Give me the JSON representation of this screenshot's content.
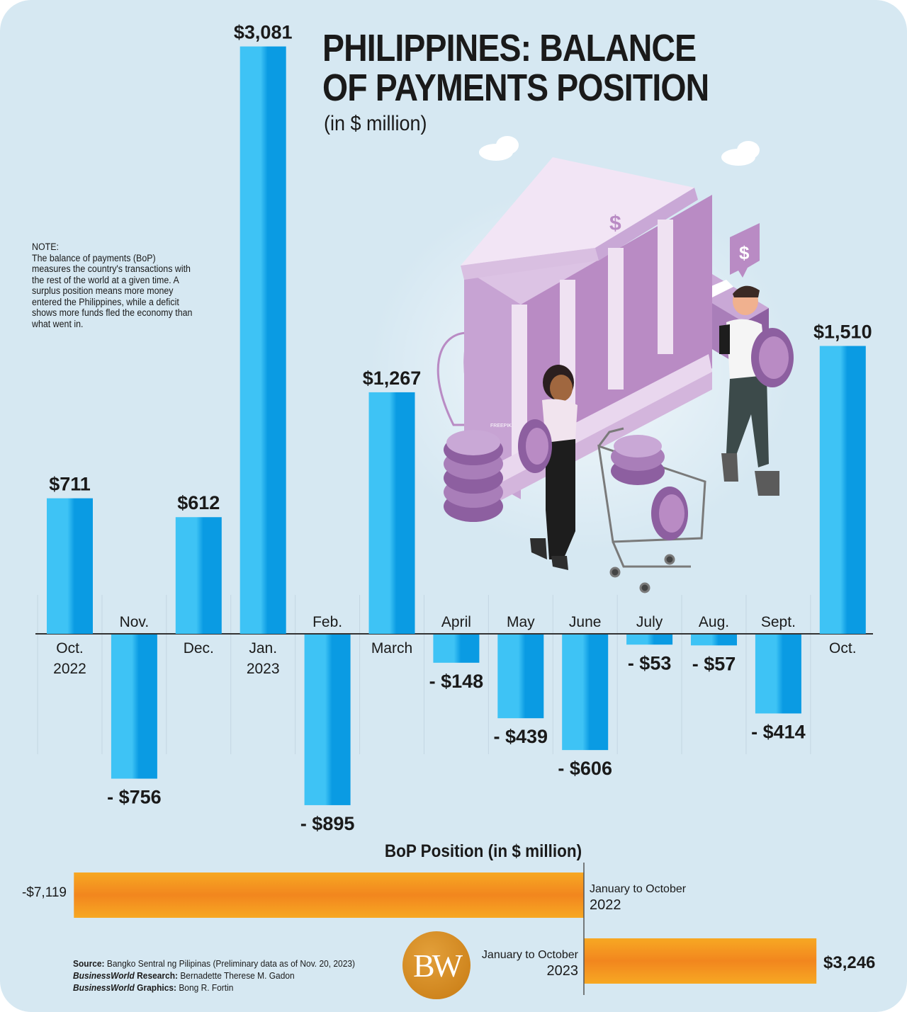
{
  "header": {
    "title_line1": "PHILIPPINES: BALANCE",
    "title_line2": "OF PAYMENTS POSITION",
    "subtitle": "(in $ million)"
  },
  "note": {
    "heading": "NOTE:",
    "text": "The balance of payments (BoP) measures the country's transactions with the rest of the world at a given time. A surplus position means more money entered the Philippines, while a deficit shows more funds fled the economy than what went in."
  },
  "chart_data": [
    {
      "type": "bar",
      "title": "PHILIPPINES: BALANCE OF PAYMENTS POSITION",
      "subtitle": "(in $ million)",
      "categories": [
        "Oct. 2022",
        "Nov.",
        "Dec.",
        "Jan. 2023",
        "Feb.",
        "March",
        "April",
        "May",
        "June",
        "July",
        "Aug.",
        "Sept.",
        "Oct."
      ],
      "category_lines": [
        [
          "Oct.",
          "2022"
        ],
        [
          "Nov."
        ],
        [
          "Dec."
        ],
        [
          "Jan.",
          "2023"
        ],
        [
          "Feb."
        ],
        [
          "March"
        ],
        [
          "April"
        ],
        [
          "May"
        ],
        [
          "June"
        ],
        [
          "July"
        ],
        [
          "Aug."
        ],
        [
          "Sept."
        ],
        [
          "Oct."
        ]
      ],
      "values": [
        711,
        -756,
        612,
        3081,
        -895,
        1267,
        -148,
        -439,
        -606,
        -53,
        -57,
        -414,
        1510
      ],
      "value_labels": [
        "$711",
        "- $756",
        "$612",
        "$3,081",
        "- $895",
        "$1,267",
        "- $148",
        "- $439",
        "- $606",
        "- $53",
        "- $57",
        "- $414",
        "$1,510"
      ],
      "ylim": [
        -1000,
        3200
      ],
      "grid": false,
      "colors": {
        "bar": "#0a9be3",
        "bar_light": "#3ec3f5"
      }
    },
    {
      "type": "bar",
      "orientation": "horizontal",
      "title": "BoP Position (in $ million)",
      "categories": [
        "January to October 2022",
        "January to October 2023"
      ],
      "values": [
        -7119,
        3246
      ],
      "value_labels": [
        "-$7,119",
        "$3,246"
      ],
      "colors": {
        "bar": "#f7a823",
        "bar_mid": "#f2861e"
      }
    }
  ],
  "bop": {
    "title": "BoP Position (in $ million)",
    "row1": {
      "label_line1": "January to October",
      "label_line2": "2022",
      "value": "-$7,119"
    },
    "row2": {
      "label_line1": "January to October",
      "label_line2": "2023",
      "value": "$3,246"
    }
  },
  "footer": {
    "source_label": "Source:",
    "source_text": " Bangko Sentral ng Pilipinas (Preliminary data as of Nov. 20, 2023)",
    "research_brand": "BusinessWorld",
    "research_label": " Research:",
    "research_text": " Bernadette Therese M. Gadon",
    "graphics_brand": "BusinessWorld",
    "graphics_label": " Graphics:",
    "graphics_text": " Bong R. Fortin",
    "logo_text": "BW"
  },
  "illustration": {
    "watermark": "FREEPIK",
    "sign_symbol": "$"
  }
}
